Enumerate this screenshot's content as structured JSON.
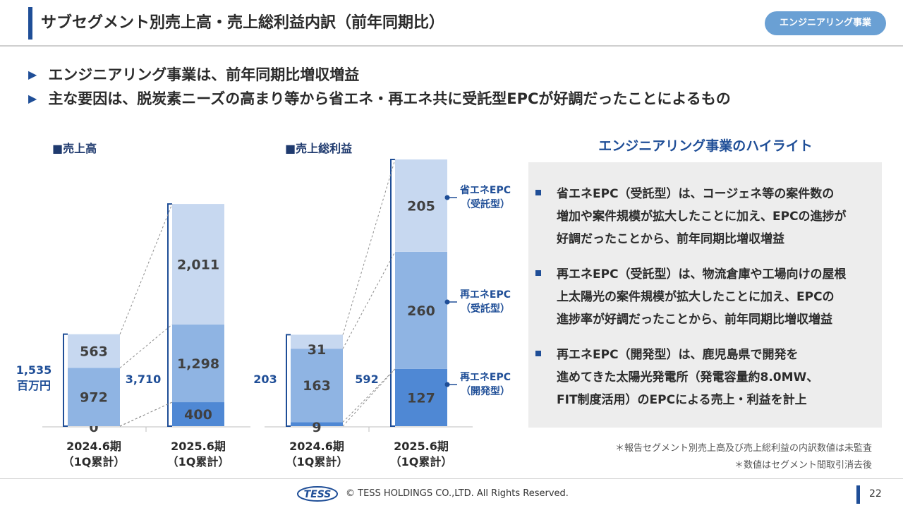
{
  "header": {
    "title": "サブセグメント別売上高・売上総利益内訳（前年同期比）",
    "badge": "エンジニアリング事業"
  },
  "bullets": [
    "エンジニアリング事業は、前年同期比増収増益",
    "主な要因は、脱炭素ニーズの高まり等から省エネ・再エネ共に受託型EPCが好調だったことによるもの"
  ],
  "colors": {
    "accent": "#1f4e97",
    "light": "#c7d8f0",
    "mid": "#8fb4e3",
    "dark": "#4f88d4",
    "badge": "#6aa0d4"
  },
  "chart_data": [
    {
      "type": "bar",
      "stacked": true,
      "title": "■売上高",
      "categories": [
        "2024.6期\n（1Q累計）",
        "2025.6期\n（1Q累計）"
      ],
      "category_lines": [
        [
          "2024.6期",
          "（1Q累計）"
        ],
        [
          "2025.6期",
          "（1Q累計）"
        ]
      ],
      "series": [
        {
          "name": "再エネEPC（開発型）",
          "values": [
            0,
            400
          ]
        },
        {
          "name": "再エネEPC（受託型）",
          "values": [
            972,
            1298
          ]
        },
        {
          "name": "省エネEPC（受託型）",
          "values": [
            563,
            2011
          ]
        }
      ],
      "value_labels": [
        [
          "0",
          "972",
          "563"
        ],
        [
          "400",
          "1,298",
          "2,011"
        ]
      ],
      "totals": [
        "1,535",
        "3,710"
      ],
      "unit": "百万円"
    },
    {
      "type": "bar",
      "stacked": true,
      "title": "■売上総利益",
      "categories": [
        "2024.6期\n（1Q累計）",
        "2025.6期\n（1Q累計）"
      ],
      "category_lines": [
        [
          "2024.6期",
          "（1Q累計）"
        ],
        [
          "2025.6期",
          "（1Q累計）"
        ]
      ],
      "series": [
        {
          "name": "再エネEPC（開発型）",
          "values": [
            9,
            127
          ]
        },
        {
          "name": "再エネEPC（受託型）",
          "values": [
            163,
            260
          ]
        },
        {
          "name": "省エネEPC（受託型）",
          "values": [
            31,
            205
          ]
        }
      ],
      "value_labels": [
        [
          "9",
          "163",
          "31"
        ],
        [
          "127",
          "260",
          "205"
        ]
      ],
      "totals": [
        "203",
        "592"
      ],
      "legend": [
        [
          "省エネEPC",
          "（受託型）"
        ],
        [
          "再エネEPC",
          "（受託型）"
        ],
        [
          "再エネEPC",
          "（開発型）"
        ]
      ]
    }
  ],
  "highlights": {
    "title": "エンジニアリング事業のハイライト",
    "items": [
      [
        "省エネEPC（受託型）は、コージェネ等の案件数の",
        "増加や案件規模が拡大したことに加え、EPCの進捗が",
        "好調だったことから、前年同期比増収増益"
      ],
      [
        "再エネEPC（受託型）は、物流倉庫や工場向けの屋根",
        "上太陽光の案件規模が拡大したことに加え、EPCの",
        "進捗率が好調だったことから、前年同期比増収増益"
      ],
      [
        "再エネEPC（開発型）は、鹿児島県で開発を",
        "進めてきた太陽光発電所（発電容量約8.0MW、",
        "FIT制度活用）のEPCによる売上・利益を計上"
      ]
    ]
  },
  "notes": [
    "＊報告セグメント別売上高及び売上総利益の内訳数値は未監査",
    "＊数値はセグメント間取引消去後"
  ],
  "footer": {
    "logo_text": "TESS",
    "copyright": "© TESS HOLDINGS CO.,LTD. All Rights Reserved.",
    "page": "22"
  }
}
